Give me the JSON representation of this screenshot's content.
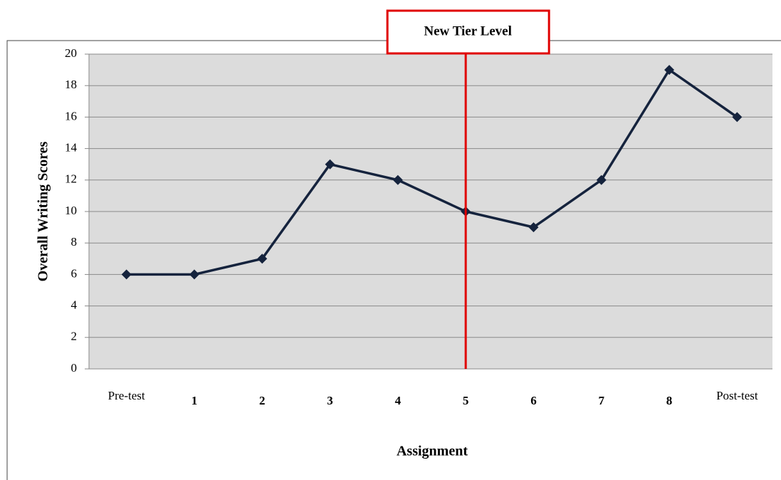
{
  "chart_data": {
    "type": "line",
    "categories": [
      "Pre-test",
      "1",
      "2",
      "3",
      "4",
      "5",
      "6",
      "7",
      "8",
      "Post-test"
    ],
    "values": [
      6,
      6,
      7,
      13,
      12,
      10,
      9,
      12,
      19,
      16
    ],
    "color": "#15233d",
    "ylim": [
      0,
      20
    ],
    "yticks": [
      0,
      2,
      4,
      6,
      8,
      10,
      12,
      14,
      16,
      18,
      20
    ],
    "grid": true,
    "y_label": "Overall Writing Scores",
    "x_label": "Assignment",
    "annotation": {
      "text": "New Tier Level",
      "x": "5",
      "color": "#e00000"
    }
  }
}
